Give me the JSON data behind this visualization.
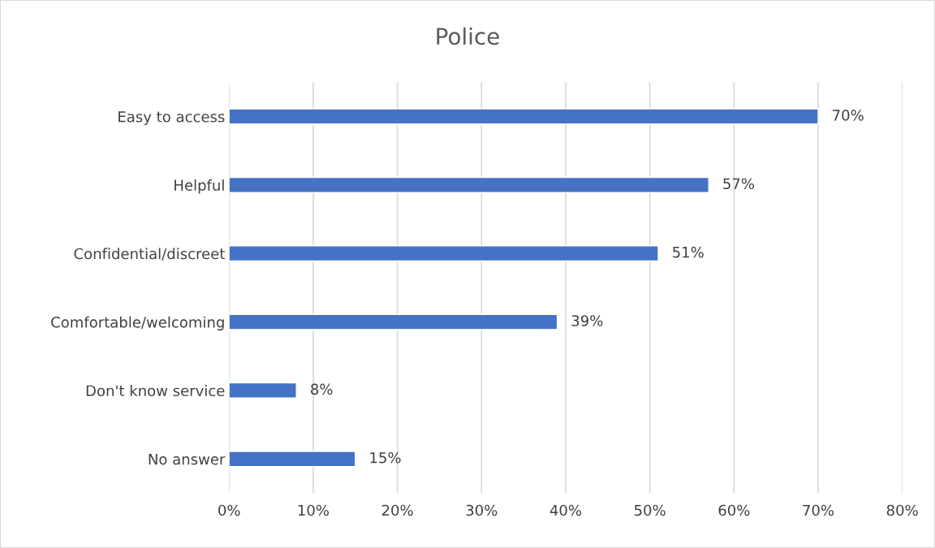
{
  "chart_data": {
    "type": "bar",
    "title": "Police",
    "orientation": "horizontal",
    "categories": [
      "Easy to access",
      "Helpful",
      "Confidential/discreet",
      "Comfortable/welcoming",
      "Don't know service",
      "No answer"
    ],
    "values": [
      70,
      57,
      51,
      39,
      8,
      15
    ],
    "value_labels": [
      "70%",
      "57%",
      "51%",
      "39%",
      "8%",
      "15%"
    ],
    "color": "#4472c4",
    "xlim": [
      0,
      80
    ],
    "xticks": [
      {
        "value": 0,
        "label": "0%"
      },
      {
        "value": 10,
        "label": "10%"
      },
      {
        "value": 20,
        "label": "20%"
      },
      {
        "value": 30,
        "label": "30%"
      },
      {
        "value": 40,
        "label": "40%"
      },
      {
        "value": 50,
        "label": "50%"
      },
      {
        "value": 60,
        "label": "60%"
      },
      {
        "value": 70,
        "label": "70%"
      },
      {
        "value": 80,
        "label": "80%"
      }
    ],
    "grid": "x"
  }
}
